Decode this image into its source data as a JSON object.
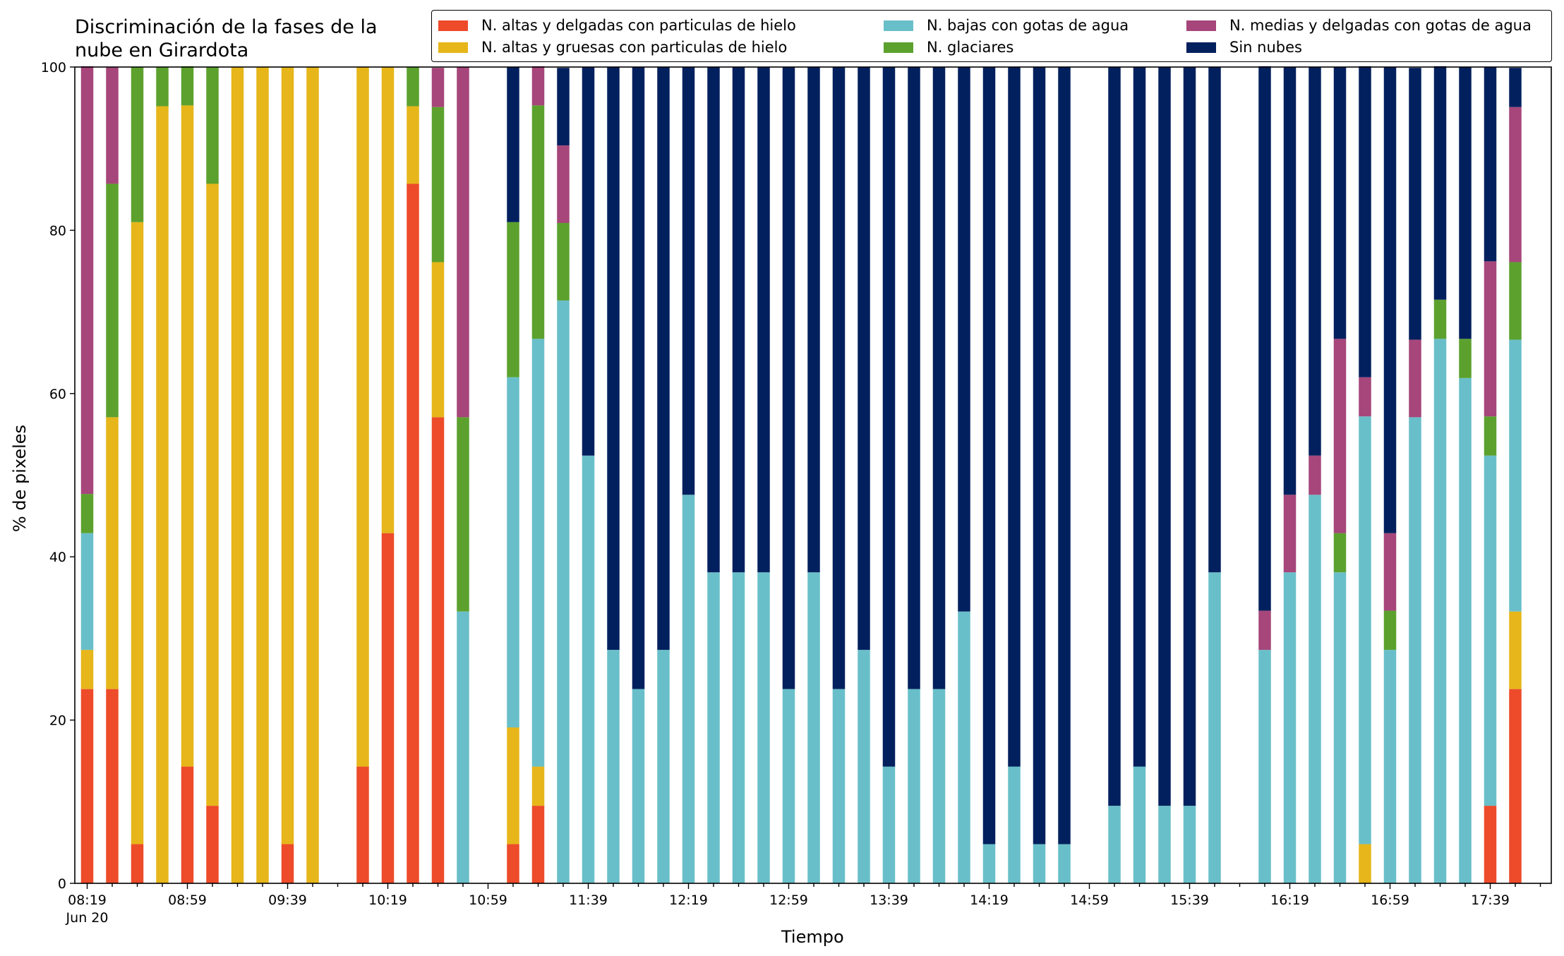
{
  "chart_data": {
    "type": "bar",
    "stacked": true,
    "title": [
      "Discriminación de la fases de la",
      "nube en Girardota"
    ],
    "xlabel": "Tiempo",
    "ylabel": "% de pixeles",
    "ylim": [
      0,
      100
    ],
    "yticks": [
      0,
      20,
      40,
      60,
      80,
      100
    ],
    "grid": false,
    "legend_placement": "top",
    "x_start": "08:19",
    "x_interval_minutes": 10,
    "x_slots": 59,
    "x_tick_labels": [
      "08:19",
      "08:59",
      "09:39",
      "10:19",
      "10:59",
      "11:39",
      "12:19",
      "12:59",
      "13:39",
      "14:19",
      "14:59",
      "15:39",
      "16:19",
      "16:59",
      "17:39"
    ],
    "x_sub_label": "Jun 20",
    "legend": [
      {
        "name": "N. altas y delgadas con particulas de hielo",
        "color": "#ed4b2a"
      },
      {
        "name": "N. altas y gruesas con particulas de hielo",
        "color": "#e6b61a"
      },
      {
        "name": "N. bajas con gotas de agua",
        "color": "#69bfc9"
      },
      {
        "name": "N. glaciares",
        "color": "#5ca12e"
      },
      {
        "name": "N. medias y delgadas con gotas de agua",
        "color": "#a6467a"
      },
      {
        "name": "Sin nubes",
        "color": "#03205e"
      }
    ],
    "bars": [
      {
        "time": "08:19",
        "values": [
          23.8,
          4.8,
          14.3,
          4.8,
          52.4,
          0
        ]
      },
      {
        "time": "08:29",
        "values": [
          23.8,
          33.3,
          0,
          28.6,
          14.3,
          0
        ]
      },
      {
        "time": "08:39",
        "values": [
          4.8,
          76.2,
          0,
          19.0,
          0,
          0
        ]
      },
      {
        "time": "08:49",
        "values": [
          0,
          95.2,
          0,
          4.8,
          0,
          0
        ]
      },
      {
        "time": "08:59",
        "values": [
          14.3,
          81.0,
          0,
          4.8,
          0,
          0
        ]
      },
      {
        "time": "09:09",
        "values": [
          9.5,
          76.2,
          0,
          14.3,
          0,
          0
        ]
      },
      {
        "time": "09:19",
        "values": [
          0,
          100,
          0,
          0,
          0,
          0
        ]
      },
      {
        "time": "09:29",
        "values": [
          0,
          100,
          0,
          0,
          0,
          0
        ]
      },
      {
        "time": "09:39",
        "values": [
          4.8,
          95.2,
          0,
          0,
          0,
          0
        ]
      },
      {
        "time": "09:49",
        "values": [
          0,
          100,
          0,
          0,
          0,
          0
        ]
      },
      {
        "time": "09:59",
        "values": [
          0,
          0,
          0,
          0,
          0,
          0
        ]
      },
      {
        "time": "10:09",
        "values": [
          14.3,
          85.7,
          0,
          0,
          0,
          0
        ]
      },
      {
        "time": "10:19",
        "values": [
          42.9,
          57.1,
          0,
          0,
          0,
          0
        ]
      },
      {
        "time": "10:29",
        "values": [
          85.7,
          9.5,
          0,
          4.8,
          0,
          0
        ]
      },
      {
        "time": "10:39",
        "values": [
          57.1,
          19.0,
          0,
          19.0,
          4.8,
          0
        ]
      },
      {
        "time": "10:49",
        "values": [
          0,
          0,
          33.3,
          23.8,
          42.9,
          0
        ]
      },
      {
        "time": "10:59",
        "values": [
          0,
          0,
          0,
          0,
          0,
          0
        ]
      },
      {
        "time": "11:09",
        "values": [
          4.8,
          14.3,
          42.9,
          19.0,
          0,
          19.0
        ]
      },
      {
        "time": "11:19",
        "values": [
          9.5,
          4.8,
          52.4,
          28.6,
          4.8,
          0
        ]
      },
      {
        "time": "11:29",
        "values": [
          0,
          0,
          71.4,
          9.5,
          9.5,
          9.5
        ]
      },
      {
        "time": "11:39",
        "values": [
          0,
          0,
          52.4,
          0,
          0,
          47.6
        ]
      },
      {
        "time": "11:49",
        "values": [
          0,
          0,
          28.6,
          0,
          0,
          71.4
        ]
      },
      {
        "time": "11:59",
        "values": [
          0,
          0,
          23.8,
          0,
          0,
          76.2
        ]
      },
      {
        "time": "12:09",
        "values": [
          0,
          0,
          28.6,
          0,
          0,
          71.4
        ]
      },
      {
        "time": "12:19",
        "values": [
          0,
          0,
          47.6,
          0,
          0,
          52.4
        ]
      },
      {
        "time": "12:29",
        "values": [
          0,
          0,
          38.1,
          0,
          0,
          61.9
        ]
      },
      {
        "time": "12:39",
        "values": [
          0,
          0,
          38.1,
          0,
          0,
          61.9
        ]
      },
      {
        "time": "12:49",
        "values": [
          0,
          0,
          38.1,
          0,
          0,
          61.9
        ]
      },
      {
        "time": "12:59",
        "values": [
          0,
          0,
          23.8,
          0,
          0,
          76.2
        ]
      },
      {
        "time": "13:09",
        "values": [
          0,
          0,
          38.1,
          0,
          0,
          61.9
        ]
      },
      {
        "time": "13:19",
        "values": [
          0,
          0,
          23.8,
          0,
          0,
          76.2
        ]
      },
      {
        "time": "13:29",
        "values": [
          0,
          0,
          28.6,
          0,
          0,
          71.4
        ]
      },
      {
        "time": "13:39",
        "values": [
          0,
          0,
          14.3,
          0,
          0,
          85.7
        ]
      },
      {
        "time": "13:49",
        "values": [
          0,
          0,
          23.8,
          0,
          0,
          76.2
        ]
      },
      {
        "time": "13:59",
        "values": [
          0,
          0,
          23.8,
          0,
          0,
          76.2
        ]
      },
      {
        "time": "14:09",
        "values": [
          0,
          0,
          33.3,
          0,
          0,
          66.7
        ]
      },
      {
        "time": "14:19",
        "values": [
          0,
          0,
          4.8,
          0,
          0,
          95.2
        ]
      },
      {
        "time": "14:29",
        "values": [
          0,
          0,
          14.3,
          0,
          0,
          85.7
        ]
      },
      {
        "time": "14:39",
        "values": [
          0,
          0,
          4.8,
          0,
          0,
          95.2
        ]
      },
      {
        "time": "14:49",
        "values": [
          0,
          0,
          4.8,
          0,
          0,
          95.2
        ]
      },
      {
        "time": "14:59",
        "values": [
          0,
          0,
          0,
          0,
          0,
          0
        ]
      },
      {
        "time": "15:09",
        "values": [
          0,
          0,
          9.5,
          0,
          0,
          90.5
        ]
      },
      {
        "time": "15:19",
        "values": [
          0,
          0,
          14.3,
          0,
          0,
          85.7
        ]
      },
      {
        "time": "15:29",
        "values": [
          0,
          0,
          9.5,
          0,
          0,
          90.5
        ]
      },
      {
        "time": "15:39",
        "values": [
          0,
          0,
          9.5,
          0,
          0,
          90.5
        ]
      },
      {
        "time": "15:49",
        "values": [
          0,
          0,
          38.1,
          0,
          0,
          61.9
        ]
      },
      {
        "time": "15:59",
        "values": [
          0,
          0,
          0,
          0,
          0,
          0
        ]
      },
      {
        "time": "16:09",
        "values": [
          0,
          0,
          28.6,
          0,
          4.8,
          66.7
        ]
      },
      {
        "time": "16:19",
        "values": [
          0,
          0,
          38.1,
          0,
          9.5,
          52.4
        ]
      },
      {
        "time": "16:29",
        "values": [
          0,
          0,
          47.6,
          0,
          4.8,
          47.6
        ]
      },
      {
        "time": "16:39",
        "values": [
          0,
          0,
          38.1,
          4.8,
          23.8,
          33.3
        ]
      },
      {
        "time": "16:49",
        "values": [
          0,
          4.8,
          52.4,
          0,
          4.8,
          38.1
        ]
      },
      {
        "time": "16:59",
        "values": [
          0,
          0,
          28.6,
          4.8,
          9.5,
          57.1
        ]
      },
      {
        "time": "17:09",
        "values": [
          0,
          0,
          57.1,
          0,
          9.5,
          33.3
        ]
      },
      {
        "time": "17:19",
        "values": [
          0,
          0,
          66.7,
          4.8,
          0,
          28.6
        ]
      },
      {
        "time": "17:29",
        "values": [
          0,
          0,
          61.9,
          4.8,
          0,
          33.3
        ]
      },
      {
        "time": "17:39",
        "values": [
          9.5,
          0,
          42.9,
          4.8,
          19.0,
          23.8
        ]
      },
      {
        "time": "17:49",
        "values": [
          23.8,
          9.5,
          33.3,
          9.5,
          19.0,
          4.8
        ]
      },
      {
        "time": "17:59",
        "values": [
          0,
          0,
          0,
          0,
          0,
          0
        ]
      }
    ]
  }
}
